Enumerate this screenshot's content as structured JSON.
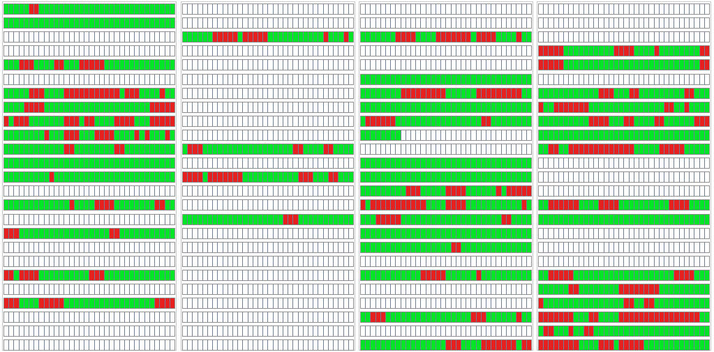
{
  "colors": {
    "available": "#00e626",
    "occupied": "#e61f1f",
    "empty": "#ffffff",
    "cell_border": "#6f7f96"
  },
  "cells_per_row": 34,
  "legend_codes": {
    "g": "available",
    "r": "occupied",
    "e": "empty"
  },
  "panels": [
    {
      "id": "panel-1",
      "rows": [
        "gggggrrggggggggggggggggggggggggggg",
        "gggggggggggggggggggggggggggggggggg",
        "eeeeeeeeeeeeeeeeeeeeeeeeeeeeeeeeee",
        "eeeeeeeeeeeeeeeeeeeeeeeeeeeeeeeeee",
        "gggrrrggggrrgggrrrrrgggggggggggggg",
        "eeeeeeeeeeeeeeeeeeeeeeeeeeeeeeeeee",
        "gggggrrrggggrrrrrrrrrrrgrrrggggrgg",
        "ggggrrrrgggggggggggggggggggggrrrrr",
        "rgrrrgggggggrrrgrrggggrrrrgggrrrrr",
        "ggggggggrgggrrrgggrrrrggggrgrgggrg",
        "ggggggggggggrrggggggggrrgggggggggg",
        "gggggggggggggggggggggggggggggggggg",
        "gggggggggrgggggggggggggggggggggggg",
        "eeeeeeeeeeeeeeeeeeeeeeeeeeeeeeeeee",
        "gggggggggggggrggggrrrrggggggggrrgg",
        "eeeeeeeeeeeeeeeeeeeeeeeeeeeeeeeeee",
        "rrrggggggggggggggggggrrggggggggggg",
        "eeeeeeeeeeeeeeeeeeeeeeeeeeeeeeeeee",
        "eeeeeeeeeeeeeeeeeeeeeeeeeeeeeeeeee",
        "rrgrrrrggggggggggrrrgggggggggggggg",
        "eeeeeeeeeeeeeeeeeeeeeeeeeeeeeeeeee",
        "rrrggggrrrrrggggggggggggggggggrrrr",
        "eeeeeeeeeeeeeeeeeeeeeeeeeeeeeeeeee",
        "eeeeeeeeeeeeeeeeeeeeeeeeeeeeeeeeee",
        "eeeeeeeeeeeeeeeeeeeeeeeeeeeeeeeeee"
      ]
    },
    {
      "id": "panel-2",
      "rows": [
        "eeeeeeeeeeeeeeeeeeeeeeeeeeeeeeeeee",
        "eeeeeeeeeeeeeeeeeeeeeeeeeeeeeeeeee",
        "ggggggrrrrrgrrrrrgggggggggggrgggrg",
        "eeeeeeeeeeeeeeeeeeeeeeeeeeeeeeeeee",
        "eeeeeeeeeeeeeeeeeeeeeeeeeeeeeeeeee",
        "eeeeeeeeeeeeeeeeeeeeeeeeeeeeeeeeee",
        "eeeeeeeeeeeeeeeeeeeeeeeeeeeeeeeeee",
        "eeeeeeeeeeeeeeeeeeeeeeeeeeeeeeeeee",
        "eeeeeeeeeeeeeeeeeeeeeeeeeeeeeeeeee",
        "eeeeeeeeeeeeeeeeeeeeeeeeeeeeeeeeee",
        "grrrggggggggggggggggggrrggggrrgggg",
        "eeeeeeeeeeeeeeeeeeeeeeeeeeeeeeeeee",
        "rrrrgrrrrrrrgggggggggggrrrgggrrggg",
        "eeeeeeeeeeeeeeeeeeeeeeeeeeeeeeeeee",
        "eeeeeeeeeeeeeeeeeeeeeeeeeeeeeeeeee",
        "ggggggggggggggggggggrrrggggggggggg",
        "eeeeeeeeeeeeeeeeeeeeeeeeeeeeeeeeee",
        "eeeeeeeeeeeeeeeeeeeeeeeeeeeeeeeeee",
        "eeeeeeeeeeeeeeeeeeeeeeeeeeeeeeeeee",
        "eeeeeeeeeeeeeeeeeeeeeeeeeeeeeeeeee",
        "eeeeeeeeeeeeeeeeeeeeeeeeeeeeeeeeee",
        "eeeeeeeeeeeeeeeeeeeeeeeeeeeeeeeeee",
        "eeeeeeeeeeeeeeeeeeeeeeeeeeeeeeeeee",
        "eeeeeeeeeeeeeeeeeeeeeeeeeeeeeeeeee",
        "eeeeeeeeeeeeeeeeeeeeeeeeeeeeeeeeee"
      ]
    },
    {
      "id": "panel-3",
      "rows": [
        "eeeeeeeeeeeeeeeeeeeeeeeeeeeeeeeeee",
        "eeeeeeeeeeeeeeeeeeeeeeeeeeeeeeeeee",
        "gggggggrrrrggggrrrrrrrgrrrrggggrgg",
        "eeeeeeeeeeeeeeeeeeeeeeeeeeeeeeeeee",
        "eeeeeeeeeeeeeeeeeeeeeeeeeeeeeeeeee",
        "gggggggggggggggggggggggggggggggggg",
        "ggggggggrrrrrrrrrggggggrrrrrrrrrgg",
        "gggggggggggggggggggggggggggggggggg",
        "grrrrrrgggggggggggggggggrrgggggggg",
        "ggggggggeeeeeeeeeeeeeeeeeeeeeeeeee",
        "eeeeeeeeeeeeeeeeeeeeeeeeeeeeeeeeee",
        "gggggggggggggggggggggggggggggggggg",
        "gggggggggggggggggggggggggggggggggg",
        "gggggggggrrrgggggrrrrggggggrgrrrrr",
        "rgrrrrrrrrrrrggggrrrrgggggggggggrg",
        "gggrrrrrggggggggggggggggggggrrgggg",
        "gggggggggggggggggggggggggggggggggg",
        "ggggggggggggggggggrrgggggggggggggg",
        "eeeeeeeeeeeeeeeeeeeeeeeeeeeeeeeeee",
        "ggggggggggggrrrrrggggggrgggggggggg",
        "eeeeeeeeeeeeeeeeeeeeeeeeeeeeeeeeee",
        "eeeeeeeeeeeeeeeeeeeeeeeeeeeeeeeeee",
        "ggrrrgggggggggggggggggrrrggggggrgg",
        "eeeeeeeeeeeeeeeeeeeeeeeeeeeeeeeeee",
        "gggggggggggggggggrrrggggrrrrrrrgrr"
      ]
    },
    {
      "id": "panel-4",
      "rows": [
        "eeeeeeeeeeeeeeeeeeeeeeeeeeeeeeeeee",
        "eeeeeeeeeeeeeeeeeeeeeeeeeeeeeeeeee",
        "eeeeeeeeeeeeeeeeeeeeeeeeeeeeeeeeee",
        "rrrrrggggggggggrrrrggggrggggggggrr",
        "rrrrrgggggggggggggggggggggggggggrr",
        "eeeeeeeeeeeeeeeeeeeeeeeeeeeeeeeeee",
        "ggggggggggggrrrgggrrgggggggggrrggg",
        "rggrrrrrrrgggggggggggggggrrggrgggg",
        "ggggggggggrrrrgggrrggggrrggggggrrr",
        "gggggggggggggggggggggggggggggggggg",
        "ggrrggrrrrrrrrrrrrrgggggrrrrrggggg",
        "eeeeeeeeeeeeeeeeeeeeeeeeeeeeeeeeee",
        "eeeeeeeeeeeeeeeeeeeeeeeeeeeeeeeeee",
        "eeeeeeeeeeeeeeeeeeeeeeeeeeeeeeeeee",
        "ggrrrrrrggggrrrrggggggggggrrrrgggg",
        "gggggggggggggggggggggggggggggggggg",
        "eeeeeeeeeeeeeeeeeeeeeeeeeeeeeeeeee",
        "eeeeeeeeeeeeeeeeeeeeeeeeeeeeeeeeee",
        "eeeeeeeeeeeeeeeeeeeeeeeeeeeeeeeeee",
        "ggrrrrrggggggggggggggggggggrrrrggg",
        "ggggggrrggggggggrrrrrrrrgggggggggg",
        "rggggggggggggggggrrggrrggggggggggg",
        "rrrrrrrgggrrggggrrrrrrrrrrrrrrrrgg",
        "grrgggrggrrggggggggggggggggggggggg",
        "rrrrrrrrggggrrrgrrrrrggggggggggggg"
      ]
    }
  ]
}
